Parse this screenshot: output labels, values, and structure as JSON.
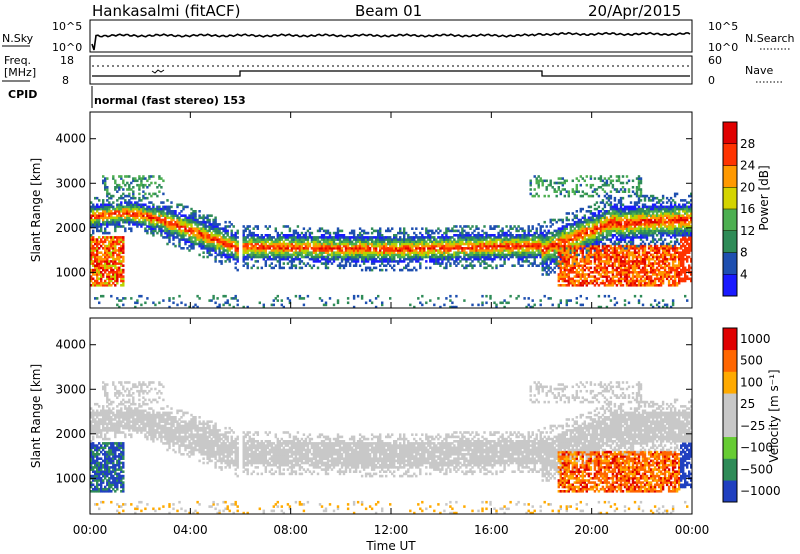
{
  "header": {
    "station": "Hankasalmi (fitACF)",
    "beam": "Beam 01",
    "date": "20/Apr/2015"
  },
  "sky_panel": {
    "left_label": "N.Sky",
    "left_ticks": [
      "10^5",
      "10^0"
    ],
    "right_ticks": [
      "10^5",
      "10^0"
    ],
    "right_label": "N.Search"
  },
  "freq_panel": {
    "left_label_line1": "Freq.",
    "left_label_line2": "[MHz]",
    "left_ticks": [
      "18",
      "8"
    ],
    "right_ticks": [
      "60",
      "0"
    ],
    "right_label": "Nave"
  },
  "cpid": {
    "label": "CPID",
    "mode_text": "normal (fast stereo) 153"
  },
  "chart_data": [
    {
      "type": "heatmap",
      "name": "power",
      "ylabel": "Slant Range [km]",
      "ylim": [
        200,
        4600
      ],
      "yticks": [
        "1000",
        "2000",
        "3000",
        "4000"
      ],
      "xlim": [
        0,
        24
      ],
      "colorbar": {
        "label": "Power [dB]",
        "ticks": [
          "4",
          "8",
          "12",
          "16",
          "20",
          "24",
          "28"
        ],
        "colors": [
          "#1a1aff",
          "#1e4fb0",
          "#2e8b57",
          "#4caf50",
          "#d4d400",
          "#ff9900",
          "#ff3300",
          "#e00000"
        ]
      }
    },
    {
      "type": "heatmap",
      "name": "velocity",
      "ylabel": "Slant Range [km]",
      "ylim": [
        200,
        4600
      ],
      "yticks": [
        "1000",
        "2000",
        "3000",
        "4000"
      ],
      "xlim": [
        0,
        24
      ],
      "colorbar": {
        "label": "Velocity [m s⁻¹]",
        "ticks": [
          "1000",
          "500",
          "100",
          "25",
          "−25",
          "−100",
          "−500",
          "−1000"
        ],
        "colors": [
          "#2040c0",
          "#2e8b57",
          "#66cc33",
          "#c8c8c8",
          "#c8c8c8",
          "#ffaa00",
          "#ff6600",
          "#e00000"
        ]
      }
    }
  ],
  "x_axis": {
    "ticks": [
      "00:00",
      "04:00",
      "08:00",
      "12:00",
      "16:00",
      "20:00",
      "00:00"
    ],
    "label": "Time UT"
  },
  "colors": {
    "power_palette": [
      "#1a1aff",
      "#1e4fb0",
      "#2e8b57",
      "#4caf50",
      "#b8d400",
      "#ff9900",
      "#ff3300",
      "#e00000"
    ],
    "velocity_gray": "#c8c8c8"
  }
}
